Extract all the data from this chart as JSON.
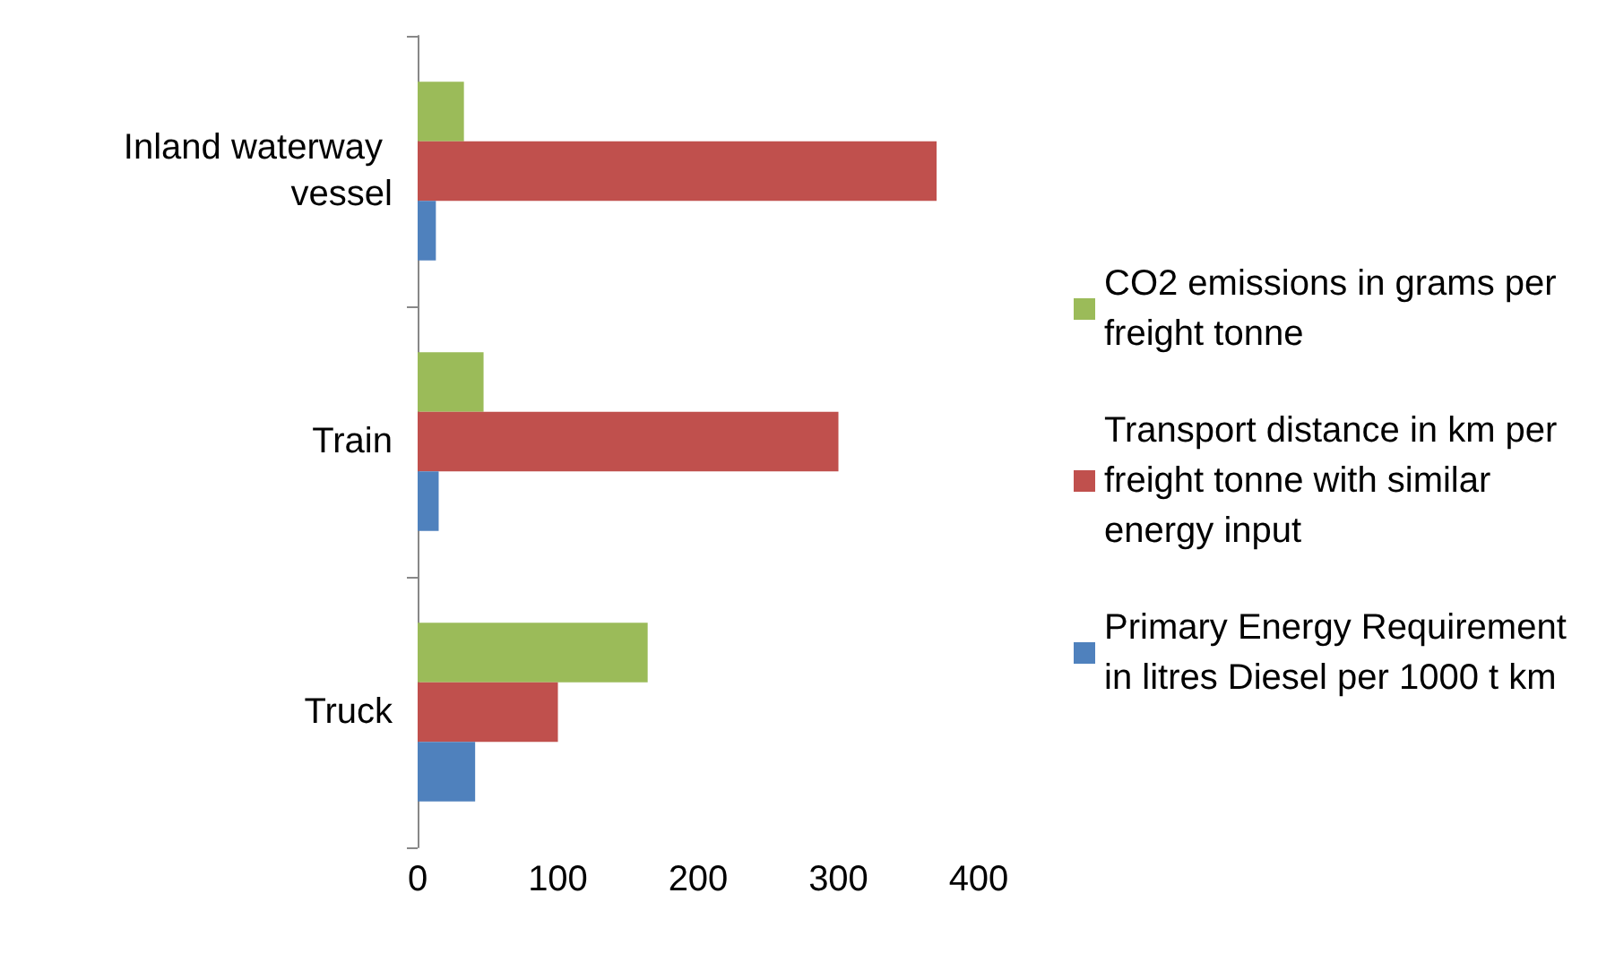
{
  "chart_data": {
    "type": "bar",
    "orientation": "horizontal",
    "categories": [
      "Inland waterway vessel",
      "Train",
      "Truck"
    ],
    "series": [
      {
        "name": "CO2 emissions in grams per freight tonne",
        "color": "#9bbb59",
        "values": [
          33,
          47,
          164
        ]
      },
      {
        "name": "Transport distance in km per freight tonne with similar energy input",
        "color": "#c0504d",
        "values": [
          370,
          300,
          100
        ]
      },
      {
        "name": "Primary Energy Requirement in litres Diesel per 1000 t km",
        "color": "#4f81bd",
        "values": [
          13,
          15,
          41
        ]
      }
    ],
    "xlim": [
      0,
      400
    ],
    "xticks": [
      0,
      100,
      200,
      300,
      400
    ],
    "grid": false,
    "legend": "right"
  }
}
